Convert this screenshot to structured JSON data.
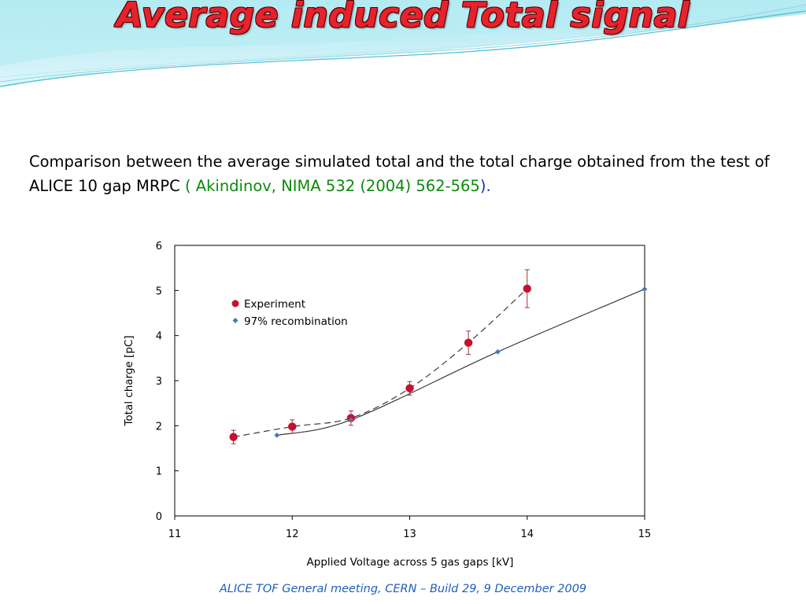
{
  "slide": {
    "title": "Average induced Total signal",
    "description": "Comparison between the average simulated total and the total charge obtained from the test of ALICE 10 gap MRPC",
    "citation": "( Akindinov, NIMA 532 (2004) 562-565",
    "citation_close": ")",
    "citation_end": ".",
    "footer": "ALICE TOF General meeting,  CERN – Build 29, 9 December 2009"
  },
  "colors": {
    "title": "#e8222c",
    "experiment": "#c8102e",
    "recombination": "#4a78b8",
    "citation": "#0a8a0a",
    "footer": "#1f5fbf"
  },
  "chart_data": {
    "type": "scatter",
    "title": "",
    "xlabel": "Applied Voltage across 5 gas gaps [kV]",
    "ylabel": "Total charge [pC]",
    "xlim": [
      11,
      15
    ],
    "ylim": [
      0,
      6
    ],
    "x_ticks": [
      "11",
      "12",
      "13",
      "14",
      "15"
    ],
    "y_ticks": [
      "0",
      "1",
      "2",
      "3",
      "4",
      "5",
      "6"
    ],
    "grid": false,
    "legend_position": "top-left",
    "series": [
      {
        "name": "Experiment",
        "marker": "circle",
        "color": "#c8102e",
        "x": [
          11.5,
          12.0,
          12.5,
          13.0,
          13.5,
          14.0
        ],
        "y": [
          1.75,
          1.98,
          2.17,
          2.83,
          3.84,
          5.04
        ],
        "err": [
          0.15,
          0.15,
          0.16,
          0.15,
          0.26,
          0.42
        ],
        "trend": "dashed"
      },
      {
        "name": "97% recombination",
        "marker": "diamond",
        "color": "#4a78b8",
        "x": [
          11.87,
          12.5,
          13.75,
          15.0
        ],
        "y": [
          1.79,
          2.13,
          3.64,
          5.03
        ],
        "trend": "solid"
      }
    ]
  }
}
